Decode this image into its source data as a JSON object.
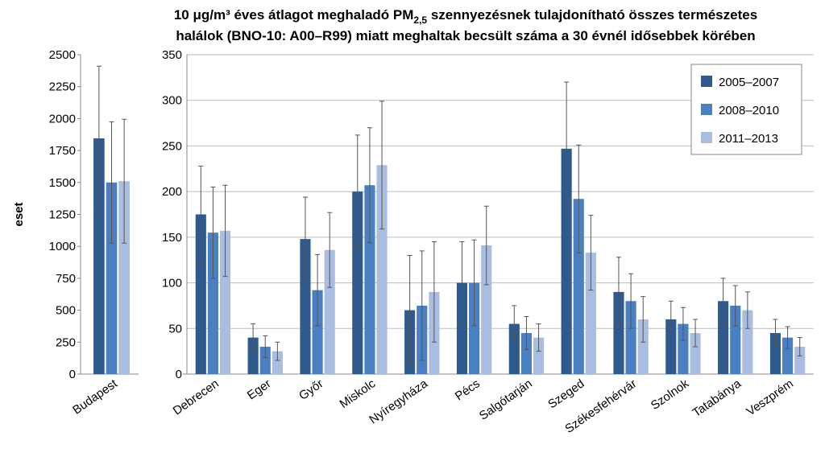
{
  "title": [
    "10 μg/m³ éves átlagot meghaladó PM",
    "2,5",
    " szennyezésnek tulajdonítható összes természetes",
    "halálok (BNO-10: A00–R99) miatt meghaltak becsült száma a 30 évnél idősebbek körében"
  ],
  "chart_data": [
    {
      "type": "bar",
      "ylabel": "eset",
      "categories": [
        "Budapest"
      ],
      "ylim": [
        0,
        2500
      ],
      "yticks": [
        0,
        250,
        500,
        750,
        1000,
        1250,
        1500,
        1750,
        2000,
        2250,
        2500
      ],
      "series": [
        {
          "color": "#2e5a8e",
          "values": [
            1845
          ],
          "errors": [
            565
          ]
        },
        {
          "color": "#4a7fc1",
          "values": [
            1500
          ],
          "errors": [
            475
          ]
        },
        {
          "color": "#a9bde0",
          "values": [
            1510
          ],
          "errors": [
            485
          ]
        }
      ]
    },
    {
      "type": "bar",
      "legend": "upper right",
      "categories": [
        "Debrecen",
        "Eger",
        "Győr",
        "Miskolc",
        "Nyíregyháza",
        "Pécs",
        "Salgótarján",
        "Szeged",
        "Székesfehérvár",
        "Szolnok",
        "Tatabánya",
        "Veszprém"
      ],
      "ylim": [
        0,
        350
      ],
      "yticks": [
        0,
        50,
        100,
        150,
        200,
        250,
        300,
        350
      ],
      "series": [
        {
          "name": "2005–2007",
          "color": "#2e5a8e",
          "values": [
            175,
            40,
            148,
            200,
            70,
            100,
            55,
            247,
            90,
            60,
            80,
            45
          ],
          "errors": [
            53,
            15,
            46,
            62,
            60,
            45,
            20,
            73,
            38,
            20,
            25,
            15
          ]
        },
        {
          "name": "2008–2010",
          "color": "#4a7fc1",
          "values": [
            155,
            30,
            92,
            207,
            75,
            100,
            45,
            192,
            80,
            55,
            75,
            40
          ],
          "errors": [
            50,
            12,
            39,
            63,
            60,
            47,
            18,
            59,
            30,
            18,
            22,
            12
          ]
        },
        {
          "name": "2011–2013",
          "color": "#a9bde0",
          "values": [
            157,
            25,
            136,
            229,
            90,
            141,
            40,
            133,
            60,
            45,
            70,
            30
          ],
          "errors": [
            50,
            10,
            41,
            70,
            55,
            43,
            15,
            41,
            25,
            15,
            20,
            10
          ]
        }
      ]
    }
  ]
}
